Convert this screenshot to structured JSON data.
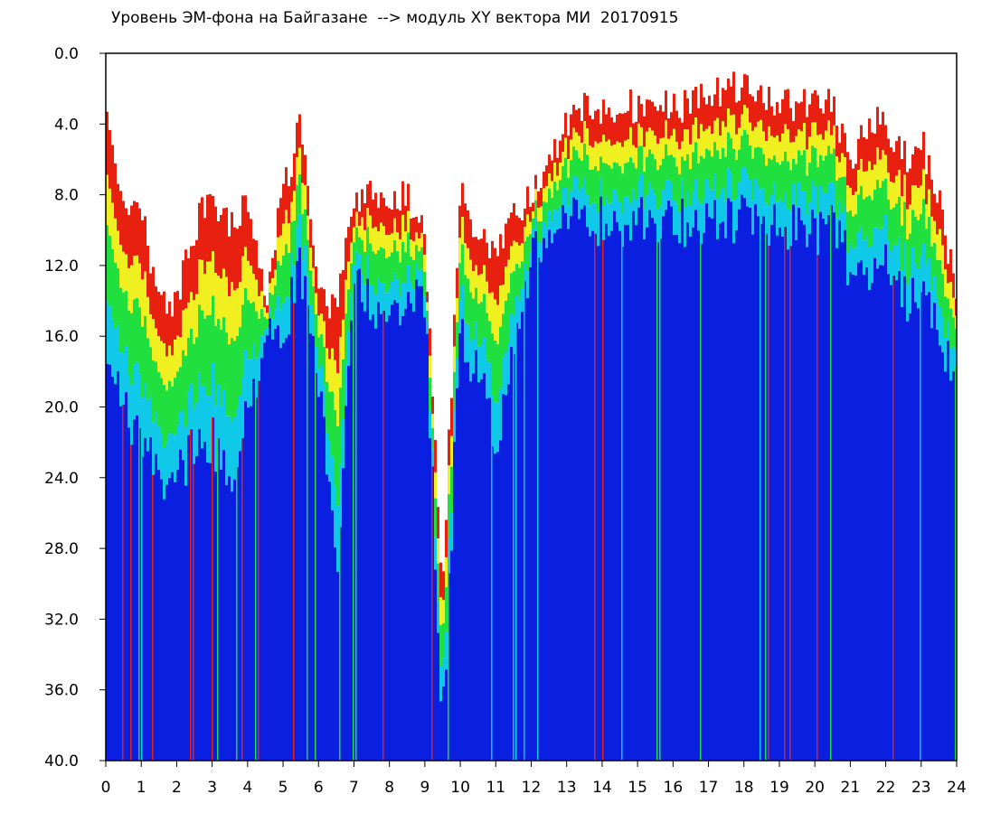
{
  "chart_data": {
    "type": "heatmap",
    "title": "Уровень ЭМ-фона на Байгазане  --> модуль XY вектора МИ  20170915",
    "xlabel": "",
    "ylabel": "",
    "xlim": [
      0,
      24
    ],
    "ylim": [
      0,
      40
    ],
    "y_axis_inverted": true,
    "x_ticks": [
      "0",
      "1",
      "2",
      "3",
      "4",
      "5",
      "6",
      "7",
      "8",
      "9",
      "10",
      "11",
      "12",
      "13",
      "14",
      "15",
      "16",
      "17",
      "18",
      "19",
      "20",
      "21",
      "22",
      "23",
      "24"
    ],
    "y_ticks": [
      "0.0",
      "4.0",
      "8.0",
      "12.0",
      "16.0",
      "20.0",
      "24.0",
      "28.0",
      "32.0",
      "36.0",
      "40.0"
    ],
    "colormap": [
      "#0a1fe0",
      "#10c8e8",
      "#20e040",
      "#f0f020",
      "#e82010"
    ],
    "background_color": "#ffffff",
    "columns": {
      "x": [
        0,
        0.5,
        1,
        1.5,
        2,
        2.5,
        3,
        3.5,
        4,
        4.5,
        5,
        5.5,
        6,
        6.5,
        7,
        7.5,
        8,
        8.5,
        9,
        9.5,
        10,
        10.5,
        11,
        11.5,
        12,
        12.5,
        13,
        13.5,
        14,
        14.5,
        15,
        15.5,
        16,
        16.5,
        17,
        17.5,
        18,
        18.5,
        19,
        19.5,
        20,
        20.5,
        21,
        21.5,
        22,
        22.5,
        23,
        23.5,
        24
      ],
      "signal_top": [
        4,
        8,
        9,
        14,
        14,
        10,
        8,
        10,
        8,
        14,
        8,
        4,
        14,
        14,
        8,
        8,
        8,
        8,
        10,
        30,
        8,
        10,
        12,
        9,
        8,
        6,
        4,
        3,
        3,
        3,
        3,
        3,
        3,
        3,
        2,
        2,
        2,
        2,
        3,
        3,
        3,
        3,
        6,
        4,
        4,
        6,
        5,
        8,
        14
      ],
      "blue_top": [
        16,
        20,
        22,
        24,
        24,
        22,
        22,
        24,
        20,
        16,
        16,
        12,
        18,
        30,
        12,
        14,
        16,
        14,
        14,
        38,
        16,
        18,
        22,
        16,
        12,
        10,
        9.5,
        9.5,
        9.5,
        9.5,
        9.5,
        9.5,
        9.5,
        9.5,
        9.5,
        9.5,
        9.5,
        9.5,
        9.5,
        10,
        10,
        10,
        12,
        12,
        12,
        14,
        14,
        16,
        18
      ]
    }
  }
}
